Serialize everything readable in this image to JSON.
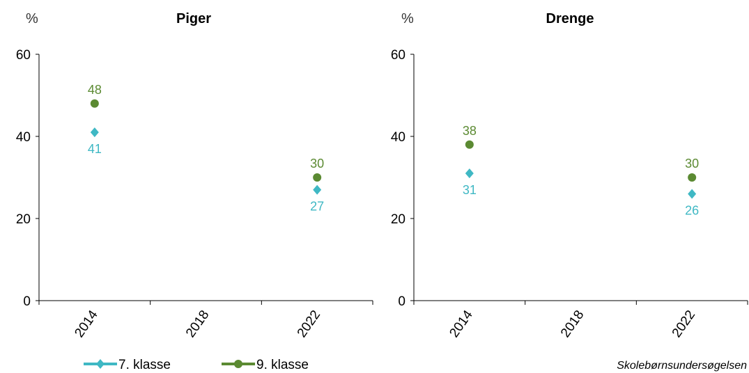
{
  "colors": {
    "series1": "#3fb8c4",
    "series2": "#5b8a32"
  },
  "chart_data": [
    {
      "type": "scatter",
      "title": "Piger",
      "ylabel": "%",
      "ylim": [
        0,
        60
      ],
      "yticks": [
        0,
        20,
        40,
        60
      ],
      "categories": [
        "2014",
        "2018",
        "2022"
      ],
      "grid": false,
      "series": [
        {
          "name": "7. klasse",
          "marker": "diamond",
          "values": [
            41,
            null,
            27
          ],
          "labels": [
            "41",
            "",
            "27"
          ]
        },
        {
          "name": "9. klasse",
          "marker": "circle",
          "values": [
            48,
            null,
            30
          ],
          "labels": [
            "48",
            "",
            "30"
          ]
        }
      ]
    },
    {
      "type": "scatter",
      "title": "Drenge",
      "ylabel": "%",
      "ylim": [
        0,
        60
      ],
      "yticks": [
        0,
        20,
        40,
        60
      ],
      "categories": [
        "2014",
        "2018",
        "2022"
      ],
      "grid": false,
      "series": [
        {
          "name": "7. klasse",
          "marker": "diamond",
          "values": [
            31,
            null,
            26
          ],
          "labels": [
            "31",
            "",
            "26"
          ]
        },
        {
          "name": "9. klasse",
          "marker": "circle",
          "values": [
            38,
            null,
            30
          ],
          "labels": [
            "38",
            "",
            "30"
          ]
        }
      ]
    }
  ],
  "legend": {
    "position": "bottom-left",
    "items": [
      {
        "label": "7. klasse",
        "marker": "diamond"
      },
      {
        "label": "9. klasse",
        "marker": "circle"
      }
    ]
  },
  "source": "Skolebørnsundersøgelsen"
}
